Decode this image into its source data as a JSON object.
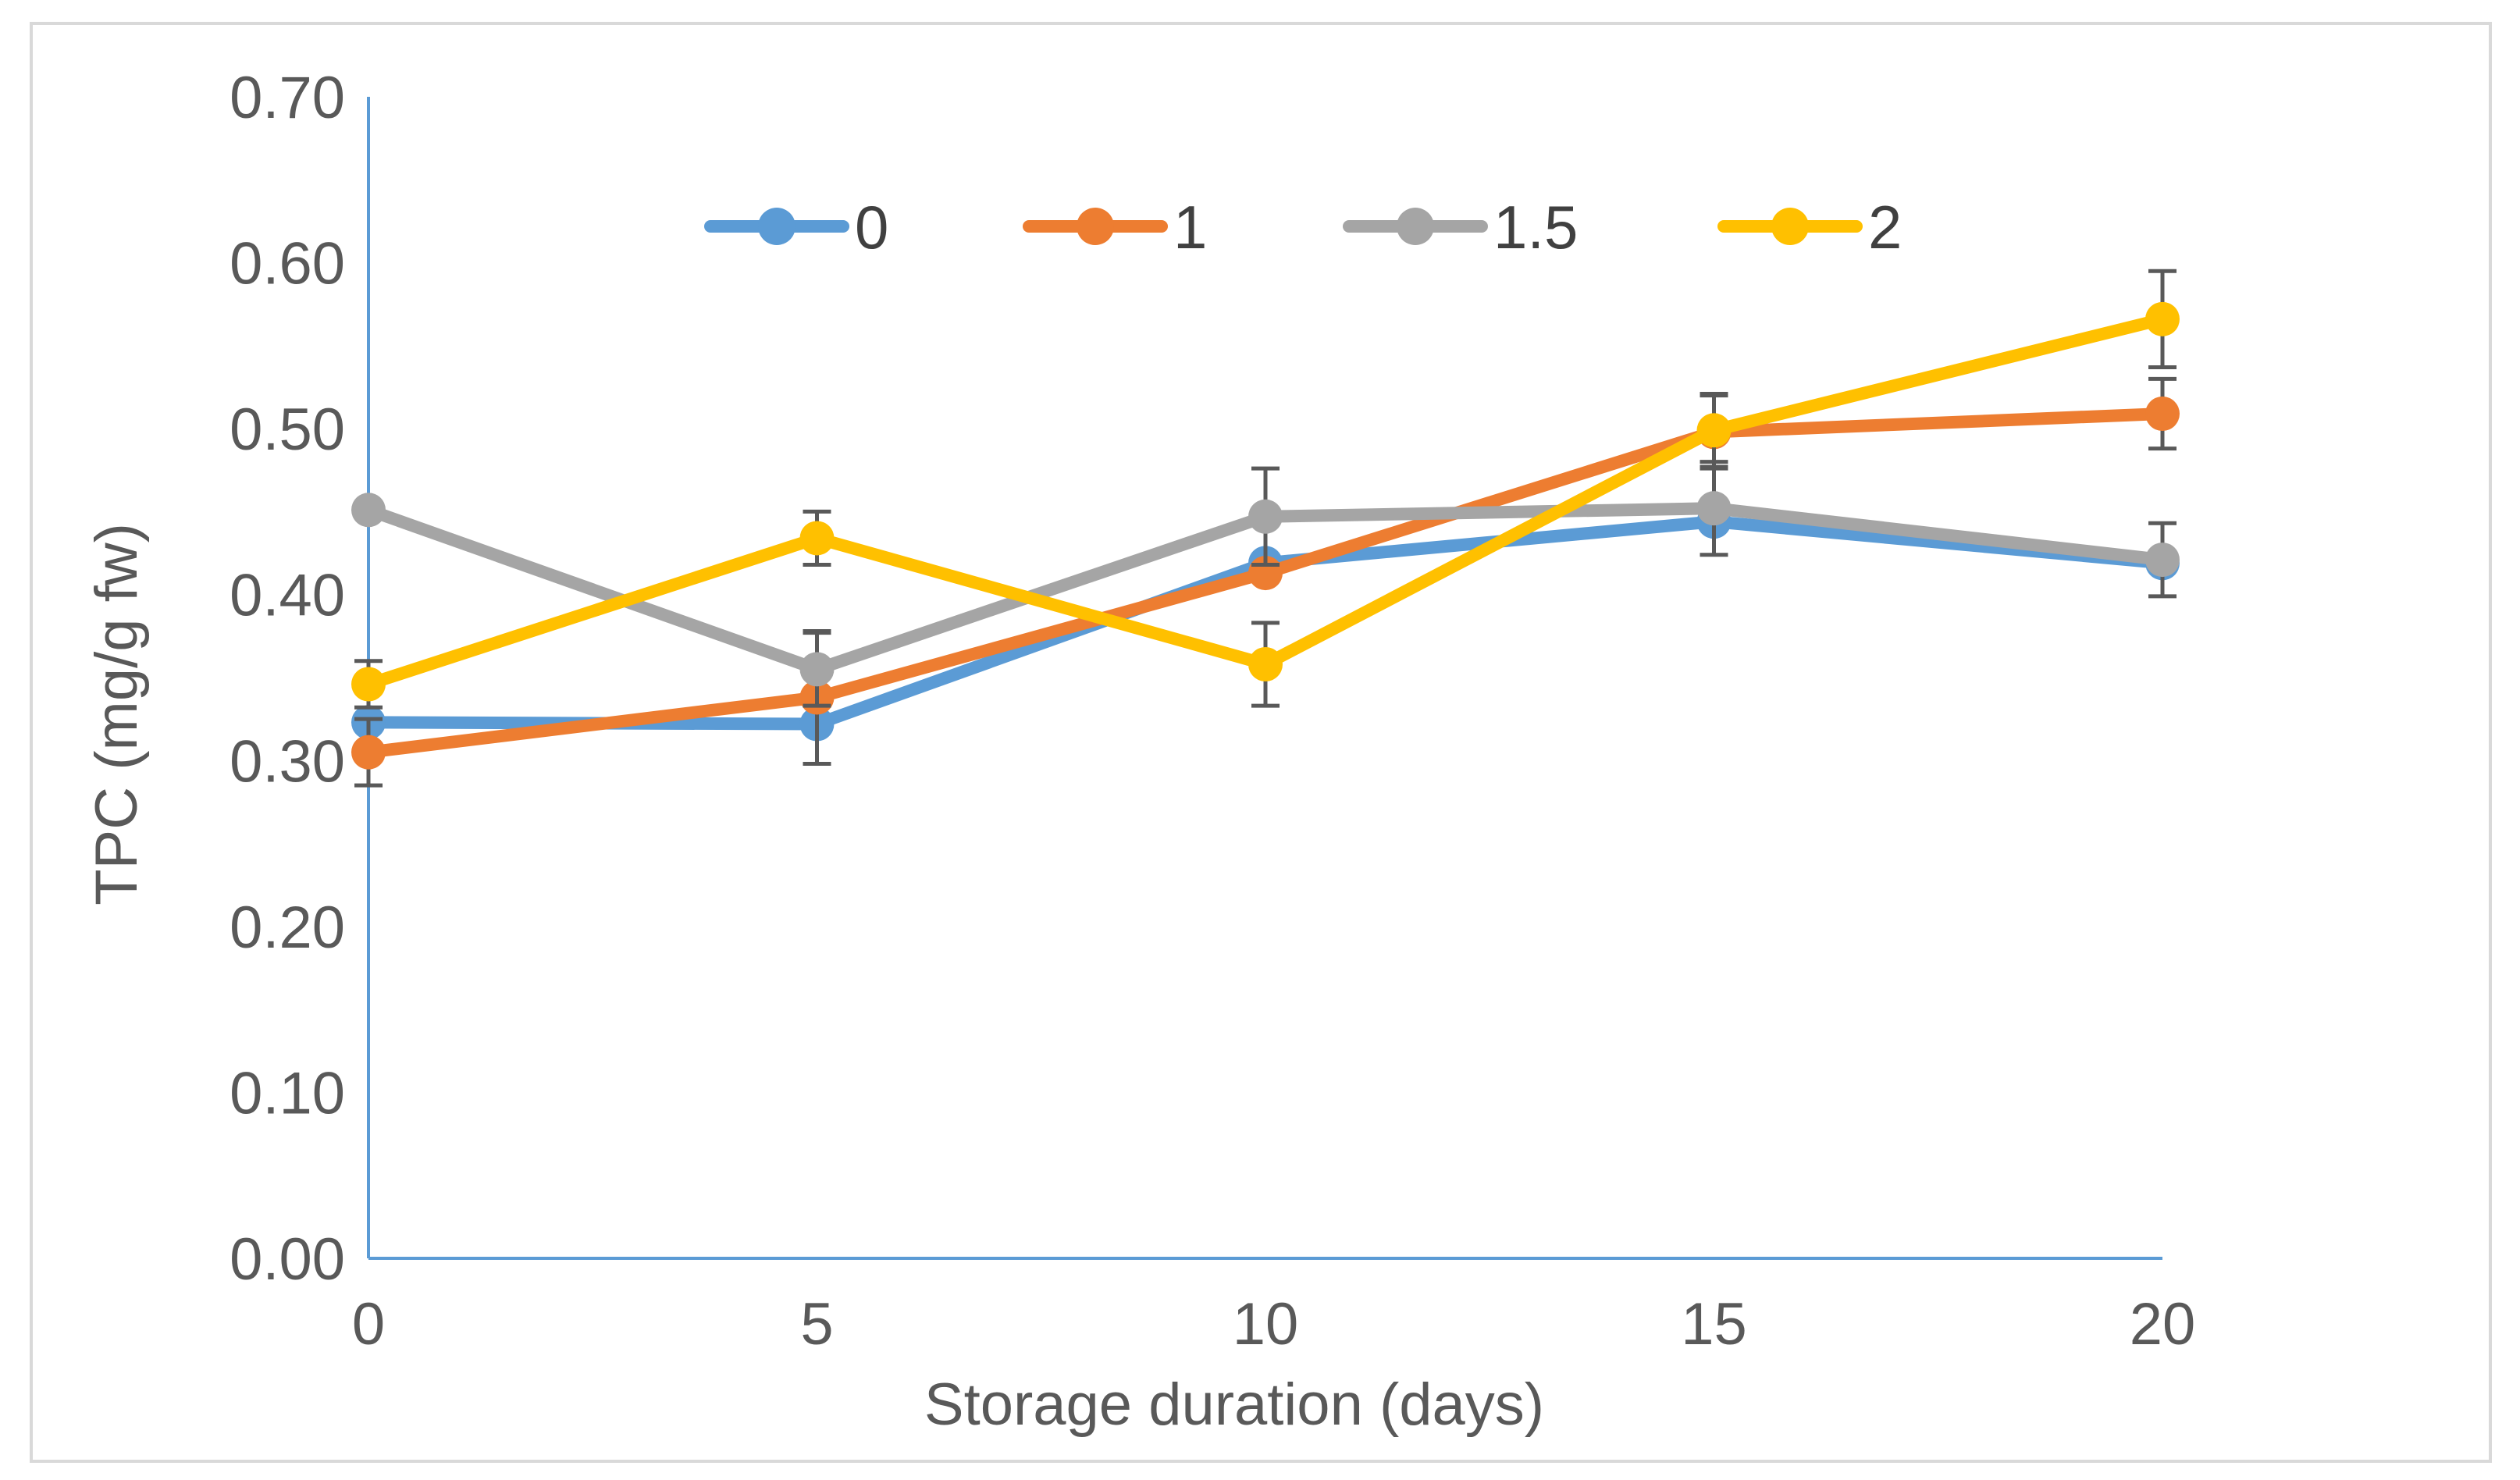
{
  "chart_data": {
    "type": "line",
    "title": "",
    "xlabel": "Storage duration (days)",
    "ylabel": "TPC (mg/g fw)",
    "x": [
      0,
      5,
      10,
      15,
      20
    ],
    "x_tick_labels": [
      "0",
      "5",
      "10",
      "15",
      "20"
    ],
    "xlim": [
      0,
      20
    ],
    "ylim": [
      0,
      0.7
    ],
    "y_tick_values": [
      0,
      0.1,
      0.2,
      0.3,
      0.4,
      0.5,
      0.6,
      0.7
    ],
    "y_tick_labels": [
      "0.00",
      "0.10",
      "0.20",
      "0.30",
      "0.40",
      "0.50",
      "0.60",
      "0.70"
    ],
    "grid": false,
    "legend_position": "top-center",
    "series": [
      {
        "name": "0",
        "color": "#5B9BD5",
        "values": [
          0.323,
          0.322,
          0.419,
          0.444,
          0.419
        ],
        "errors": [
          0.0,
          0.0,
          0.0,
          0.0,
          0.0
        ]
      },
      {
        "name": "1",
        "color": "#ED7D31",
        "values": [
          0.305,
          0.338,
          0.413,
          0.498,
          0.509
        ],
        "errors": [
          0.02,
          0.04,
          0.0,
          0.022,
          0.021
        ]
      },
      {
        "name": "1.5",
        "color": "#A5A5A5",
        "values": [
          0.451,
          0.355,
          0.447,
          0.452,
          0.421
        ],
        "errors": [
          0.0,
          0.022,
          0.029,
          0.028,
          0.022
        ]
      },
      {
        "name": "2",
        "color": "#FFC000",
        "values": [
          0.346,
          0.434,
          0.358,
          0.499,
          0.566
        ],
        "errors": [
          0.014,
          0.016,
          0.025,
          0.022,
          0.029
        ]
      }
    ]
  },
  "style": {
    "axis_color": "#5B9BD5",
    "frame_color": "#D9D9D9",
    "error_bar_color": "#595959"
  }
}
